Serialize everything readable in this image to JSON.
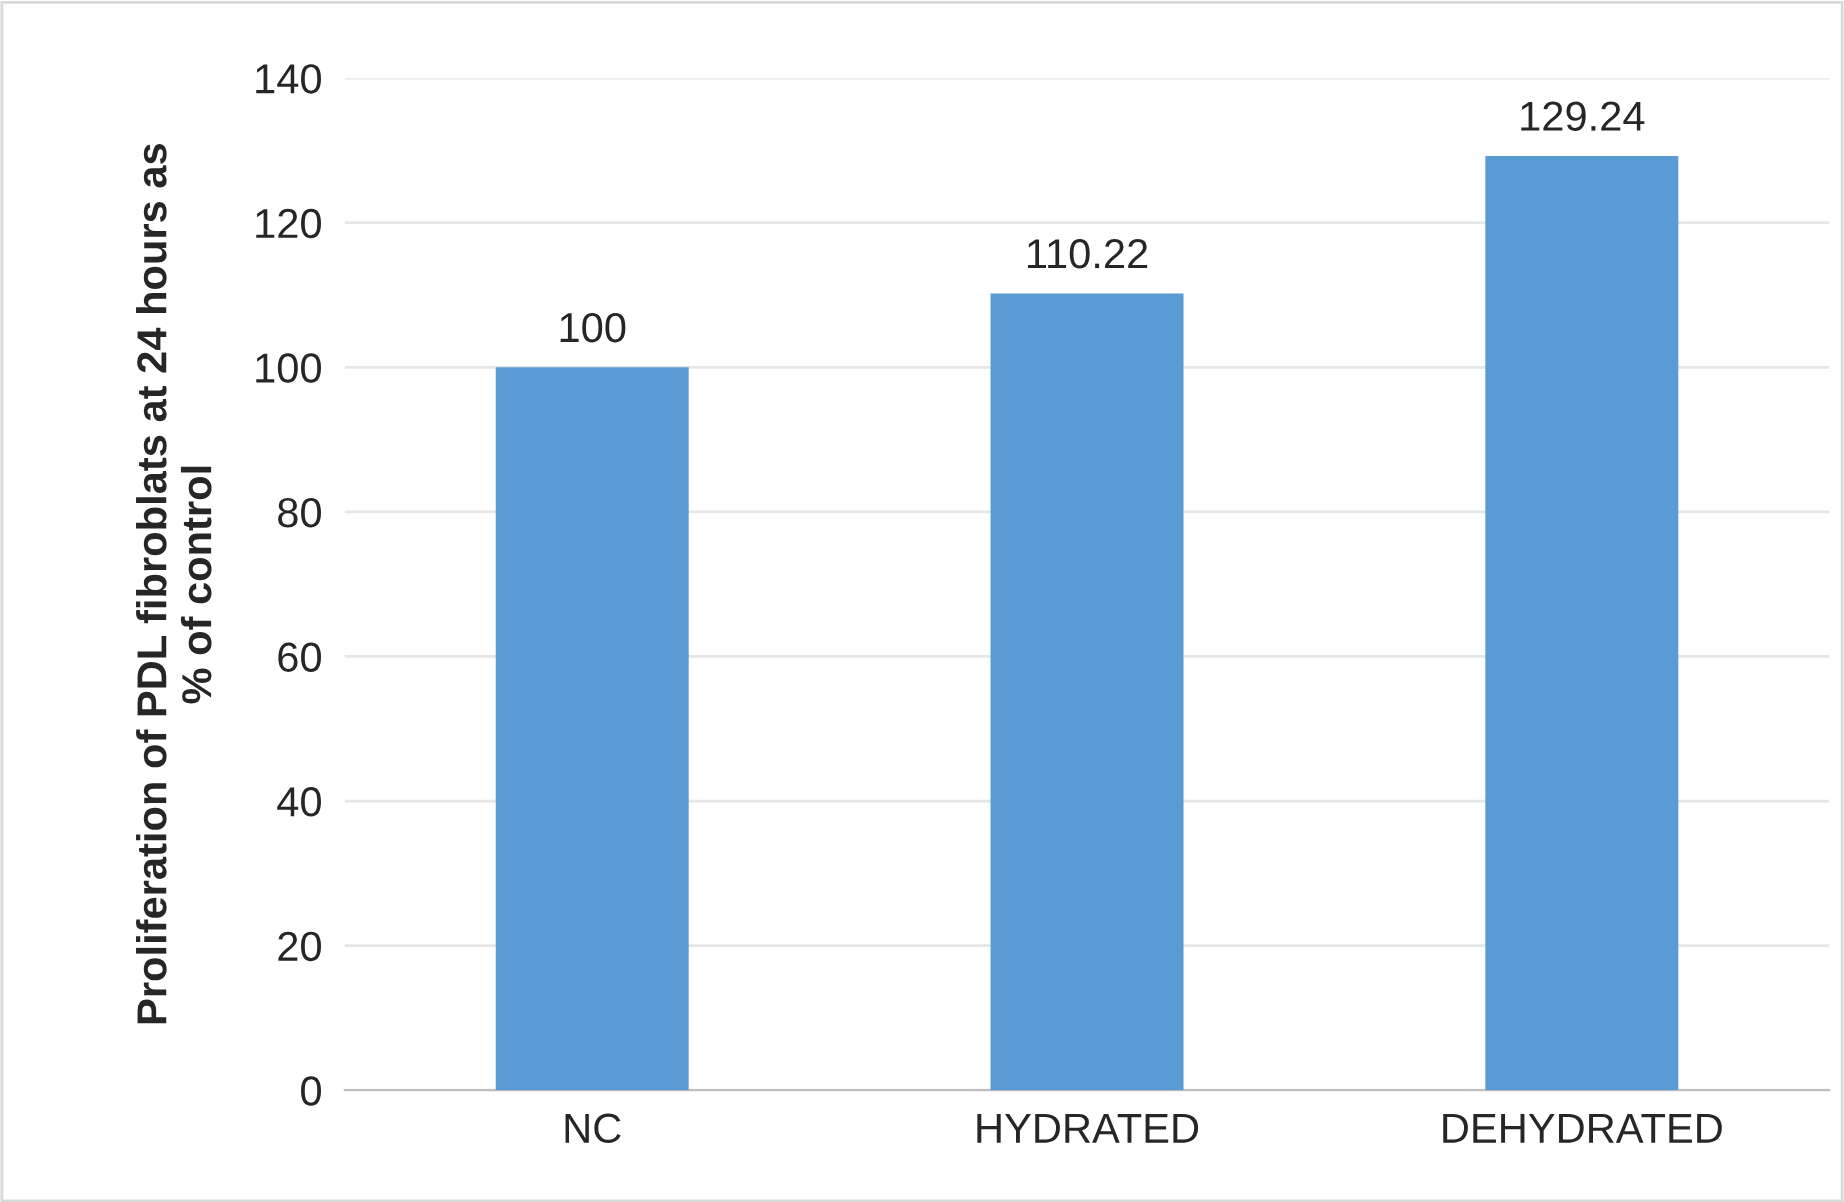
{
  "chart_data": {
    "type": "bar",
    "ylabel": "Proliferation of PDL fibroblats at 24 hours as\n% of control",
    "categories": [
      "NC",
      "HYDRATED",
      "DEHYDRATED"
    ],
    "values": [
      100,
      110.22,
      129.24
    ],
    "color": "#5b9bd5",
    "ylim": [
      0,
      140
    ],
    "yticks": [
      0,
      20,
      40,
      60,
      80,
      100,
      120,
      140
    ],
    "grid": "y",
    "data_labels": true
  }
}
